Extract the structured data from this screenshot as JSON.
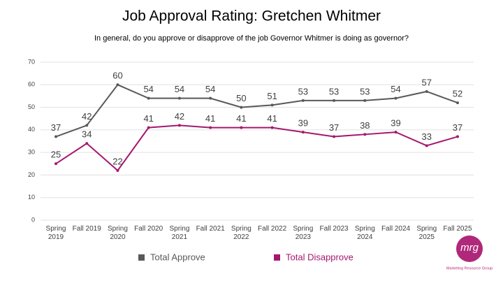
{
  "chart_data": {
    "type": "line",
    "title": "Job Approval Rating: Gretchen Whitmer",
    "subtitle": "In general, do you approve or disapprove of the job Governor Whitmer is doing as governor?",
    "categories": [
      "Spring 2019",
      "Fall 2019",
      "Spring 2020",
      "Fall 2020",
      "Spring 2021",
      "Fall 2021",
      "Spring 2022",
      "Fall 2022",
      "Spring 2023",
      "Fall 2023",
      "Spring 2024",
      "Fall 2024",
      "Spring 2025",
      "Fall 2025"
    ],
    "series": [
      {
        "name": "Total Approve",
        "color": "#595959",
        "values": [
          37,
          42,
          60,
          54,
          54,
          54,
          50,
          51,
          53,
          53,
          53,
          54,
          57,
          52
        ]
      },
      {
        "name": "Total Disapprove",
        "color": "#a5186e",
        "values": [
          25,
          34,
          22,
          41,
          42,
          41,
          41,
          41,
          39,
          37,
          38,
          39,
          33,
          37
        ]
      }
    ],
    "ylim": [
      0,
      70
    ],
    "yticks": [
      0,
      10,
      20,
      30,
      40,
      50,
      60,
      70
    ],
    "grid": true,
    "legend": "bottom"
  },
  "logo": {
    "mark": "mrg",
    "name": "Marketing Resource Group"
  }
}
